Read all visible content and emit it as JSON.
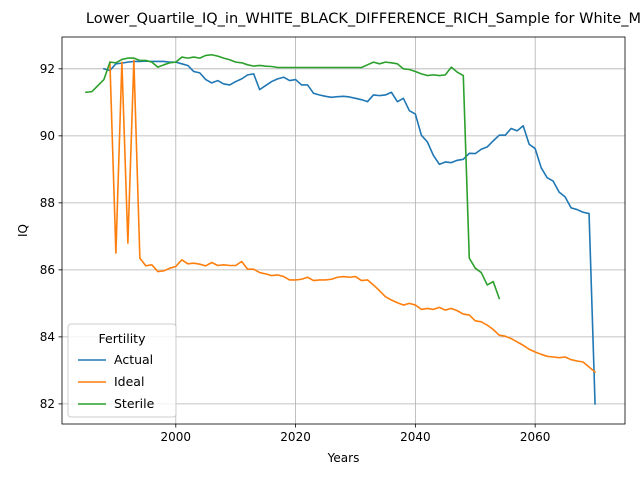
{
  "chart_data": {
    "type": "line",
    "title": "Lower_Quartile_IQ_in_WHITE_BLACK_DIFFERENCE_RICH_Sample for White_M",
    "xlabel": "Years",
    "ylabel": "IQ",
    "xlim": [
      1981,
      2075
    ],
    "ylim": [
      81.4,
      92.95
    ],
    "xticks": [
      2000,
      2020,
      2040,
      2060
    ],
    "yticks": [
      82,
      84,
      86,
      88,
      90,
      92
    ],
    "xtick_labels": [
      "2000",
      "2020",
      "2040",
      "2060"
    ],
    "ytick_labels": [
      "82",
      "84",
      "86",
      "88",
      "90",
      "92"
    ],
    "grid": true,
    "legend": {
      "title": "Fertility",
      "position": "lower-left"
    },
    "series": [
      {
        "name": "Actual",
        "color": "#1f77b4",
        "x": [
          1988,
          1989,
          1990,
          1991,
          1992,
          1993,
          1994,
          1995,
          1996,
          1997,
          1998,
          1999,
          2000,
          2001,
          2002,
          2003,
          2004,
          2005,
          2006,
          2007,
          2008,
          2009,
          2010,
          2011,
          2012,
          2013,
          2014,
          2015,
          2016,
          2017,
          2018,
          2019,
          2020,
          2021,
          2022,
          2023,
          2024,
          2025,
          2026,
          2027,
          2028,
          2029,
          2030,
          2031,
          2032,
          2033,
          2034,
          2035,
          2036,
          2037,
          2038,
          2039,
          2040,
          2041,
          2042,
          2043,
          2044,
          2045,
          2046,
          2047,
          2048,
          2049,
          2050,
          2051,
          2052,
          2053,
          2054,
          2055,
          2056,
          2057,
          2058,
          2059,
          2060,
          2061,
          2062,
          2063,
          2064,
          2065,
          2066,
          2067,
          2068,
          2069,
          2070
        ],
        "y": [
          92.0,
          91.95,
          92.15,
          92.17,
          92.2,
          92.22,
          92.22,
          92.23,
          92.22,
          92.22,
          92.22,
          92.2,
          92.2,
          92.15,
          92.1,
          91.92,
          91.88,
          91.68,
          91.58,
          91.65,
          91.55,
          91.52,
          91.62,
          91.7,
          91.82,
          91.85,
          91.38,
          91.5,
          91.62,
          91.7,
          91.75,
          91.65,
          91.68,
          91.52,
          91.52,
          91.27,
          91.22,
          91.18,
          91.15,
          91.17,
          91.18,
          91.16,
          91.12,
          91.08,
          91.02,
          91.22,
          91.2,
          91.22,
          91.3,
          91.02,
          91.12,
          90.75,
          90.65,
          90.02,
          89.82,
          89.42,
          89.15,
          89.22,
          89.2,
          89.27,
          89.3,
          89.48,
          89.47,
          89.6,
          89.67,
          89.85,
          90.02,
          90.02,
          90.22,
          90.15,
          90.3,
          89.75,
          89.62,
          89.05,
          88.75,
          88.65,
          88.32,
          88.18,
          87.85,
          87.8,
          87.72,
          87.68,
          82.0
        ]
      },
      {
        "name": "Ideal",
        "color": "#ff7f0e",
        "x": [
          1989,
          1990,
          1991,
          1992,
          1993,
          1994,
          1995,
          1996,
          1997,
          1998,
          1999,
          2000,
          2001,
          2002,
          2003,
          2004,
          2005,
          2006,
          2007,
          2008,
          2009,
          2010,
          2011,
          2012,
          2013,
          2014,
          2015,
          2016,
          2017,
          2018,
          2019,
          2020,
          2021,
          2022,
          2023,
          2024,
          2025,
          2026,
          2027,
          2028,
          2029,
          2030,
          2031,
          2032,
          2033,
          2034,
          2035,
          2036,
          2037,
          2038,
          2039,
          2040,
          2041,
          2042,
          2043,
          2044,
          2045,
          2046,
          2047,
          2048,
          2049,
          2050,
          2051,
          2052,
          2053,
          2054,
          2055,
          2056,
          2057,
          2058,
          2059,
          2060,
          2061,
          2062,
          2063,
          2064,
          2065,
          2066,
          2067,
          2068,
          2069,
          2070
        ],
        "y": [
          92.2,
          86.5,
          92.2,
          86.8,
          92.25,
          86.35,
          86.12,
          86.15,
          85.95,
          85.97,
          86.05,
          86.1,
          86.3,
          86.18,
          86.2,
          86.17,
          86.12,
          86.22,
          86.13,
          86.15,
          86.13,
          86.13,
          86.25,
          86.02,
          86.02,
          85.92,
          85.88,
          85.83,
          85.85,
          85.8,
          85.7,
          85.7,
          85.72,
          85.78,
          85.68,
          85.7,
          85.7,
          85.72,
          85.78,
          85.8,
          85.78,
          85.8,
          85.68,
          85.7,
          85.55,
          85.38,
          85.2,
          85.1,
          85.02,
          84.95,
          85.0,
          84.95,
          84.82,
          84.85,
          84.82,
          84.88,
          84.8,
          84.85,
          84.78,
          84.68,
          84.65,
          84.48,
          84.45,
          84.35,
          84.22,
          84.05,
          84.02,
          83.95,
          83.85,
          83.75,
          83.63,
          83.55,
          83.48,
          83.42,
          83.4,
          83.38,
          83.4,
          83.32,
          83.28,
          83.25,
          83.1,
          82.95
        ]
      },
      {
        "name": "Sterile",
        "color": "#2ca02c",
        "x": [
          1985,
          1986,
          1987,
          1988,
          1989,
          1990,
          1991,
          1992,
          1993,
          1994,
          1995,
          1996,
          1997,
          1998,
          1999,
          2000,
          2001,
          2002,
          2003,
          2004,
          2005,
          2006,
          2007,
          2008,
          2009,
          2010,
          2011,
          2012,
          2013,
          2014,
          2015,
          2016,
          2017,
          2018,
          2019,
          2020,
          2021,
          2022,
          2023,
          2024,
          2025,
          2026,
          2027,
          2028,
          2029,
          2030,
          2031,
          2032,
          2033,
          2034,
          2035,
          2036,
          2037,
          2038,
          2039,
          2040,
          2041,
          2042,
          2043,
          2044,
          2045,
          2046,
          2047,
          2048,
          2049,
          2050,
          2051,
          2052,
          2053,
          2054
        ],
        "y": [
          91.3,
          91.32,
          91.5,
          91.68,
          92.2,
          92.18,
          92.28,
          92.32,
          92.32,
          92.25,
          92.25,
          92.2,
          92.05,
          92.12,
          92.18,
          92.2,
          92.35,
          92.32,
          92.35,
          92.32,
          92.4,
          92.42,
          92.38,
          92.32,
          92.27,
          92.2,
          92.18,
          92.12,
          92.08,
          92.1,
          92.08,
          92.07,
          92.04,
          92.04,
          92.04,
          92.04,
          92.04,
          92.04,
          92.04,
          92.04,
          92.04,
          92.04,
          92.04,
          92.04,
          92.04,
          92.04,
          92.04,
          92.12,
          92.2,
          92.15,
          92.2,
          92.18,
          92.15,
          92.0,
          91.98,
          91.92,
          91.85,
          91.8,
          91.82,
          91.8,
          91.82,
          92.05,
          91.9,
          91.8,
          86.35,
          86.05,
          85.92,
          85.55,
          85.65,
          85.15
        ]
      }
    ]
  }
}
